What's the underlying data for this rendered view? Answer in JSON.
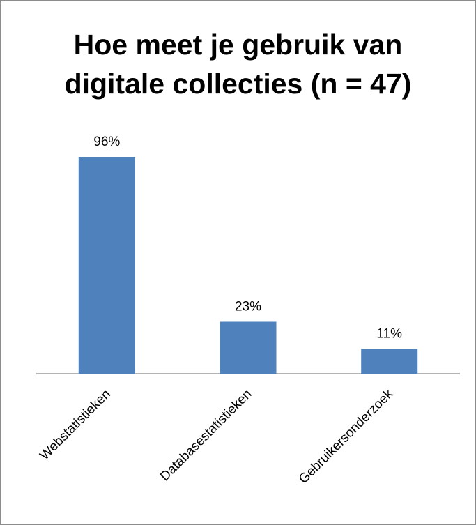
{
  "chart_data": {
    "type": "bar",
    "title_lines": [
      "Hoe meet je gebruik van",
      "digitale collecties (n = 47)"
    ],
    "categories": [
      "Webstatistieken",
      "Databasestatistieken",
      "Gebruikersonderzoek"
    ],
    "values": [
      96,
      23,
      11
    ],
    "data_labels": [
      "96%",
      "23%",
      "11%"
    ],
    "ylim": [
      0,
      100
    ],
    "grid": false,
    "legend": "none",
    "bar_color": "#4f81bd",
    "axis_color": "#868686"
  }
}
